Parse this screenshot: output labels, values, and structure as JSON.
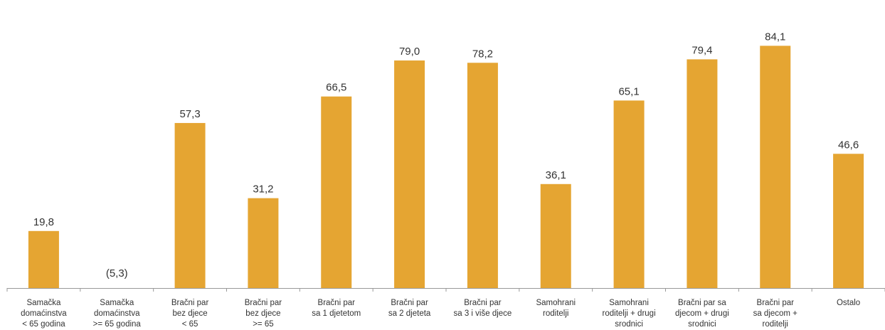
{
  "chart_data": {
    "type": "bar",
    "categories": [
      [
        "Samačka",
        "domaćinstva",
        "< 65 godina"
      ],
      [
        "Samačka",
        "domaćinstva",
        ">= 65 godina"
      ],
      [
        "Bračni par",
        "bez djece",
        "< 65"
      ],
      [
        "Bračni par",
        "bez djece",
        ">= 65"
      ],
      [
        "Bračni par",
        "sa 1 djetetom"
      ],
      [
        "Bračni par",
        "sa 2 djeteta"
      ],
      [
        "Bračni par",
        "sa 3 i više djece"
      ],
      [
        "Samohrani",
        "roditelji"
      ],
      [
        "Samohrani",
        "roditelji + drugi",
        "srodnici"
      ],
      [
        "Bračni par sa",
        "djecom + drugi",
        "srodnici"
      ],
      [
        "Bračni par",
        "sa djecom +",
        "roditelji"
      ],
      [
        "Ostalo"
      ]
    ],
    "values": [
      19.8,
      5.3,
      57.3,
      31.2,
      66.5,
      79.0,
      78.2,
      36.1,
      65.1,
      79.4,
      84.1,
      46.6
    ],
    "value_labels": [
      "19,8",
      "(5,3)",
      "57,3",
      "31,2",
      "66,5",
      "79,0",
      "78,2",
      "36,1",
      "65,1",
      "79,4",
      "84,1",
      "46,6"
    ],
    "bar_shown": [
      true,
      false,
      true,
      true,
      true,
      true,
      true,
      true,
      true,
      true,
      true,
      true
    ],
    "ylim": [
      0,
      90
    ],
    "grid": false,
    "bar_color": "#E5A532",
    "axis_color": "#999999",
    "text_color": "#333333"
  }
}
